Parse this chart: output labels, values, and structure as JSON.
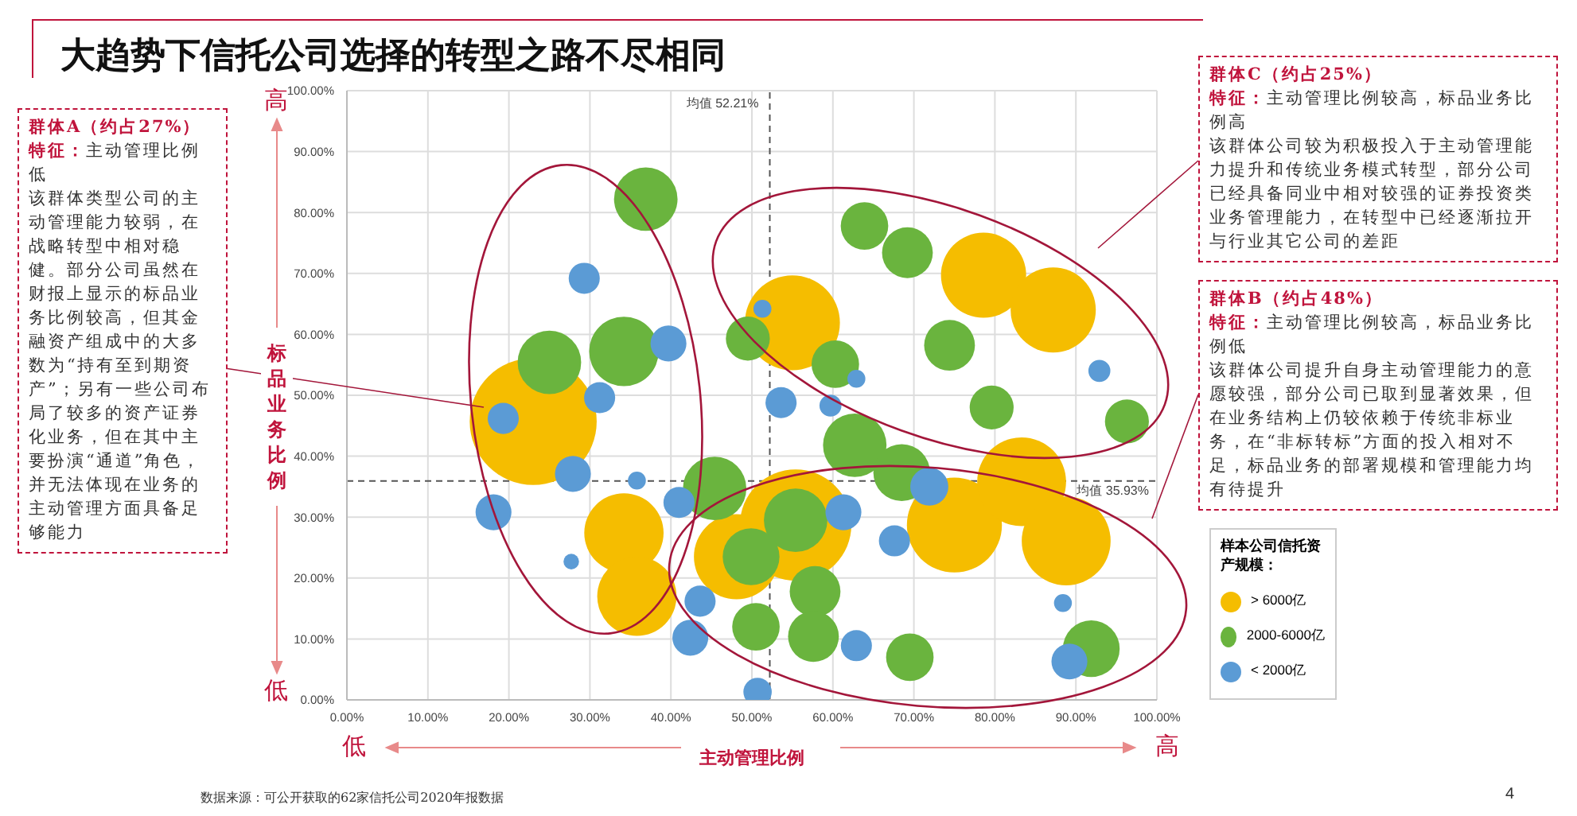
{
  "chart_data": {
    "type": "bubble",
    "title": "大趋势下信托公司选择的转型之路不尽相同",
    "xlabel": "主动管理比例",
    "ylabel": "标品业务比例",
    "legend_title": "样本公司信托资产规模：",
    "xlim": [
      0,
      100
    ],
    "ylim": [
      0,
      100
    ],
    "xticks": [
      {
        "value": 0,
        "label": "0.00%"
      },
      {
        "value": 10,
        "label": "10.00%"
      },
      {
        "value": 20,
        "label": "20.00%"
      },
      {
        "value": 30,
        "label": "30.00%"
      },
      {
        "value": 40,
        "label": "40.00%"
      },
      {
        "value": 50,
        "label": "50.00%"
      },
      {
        "value": 60,
        "label": "60.00%"
      },
      {
        "value": 70,
        "label": "70.00%"
      },
      {
        "value": 80,
        "label": "80.00%"
      },
      {
        "value": 90,
        "label": "90.00%"
      },
      {
        "value": 100,
        "label": "100.00%"
      }
    ],
    "yticks": [
      {
        "value": 0,
        "label": "0.00%"
      },
      {
        "value": 10,
        "label": "10.00%"
      },
      {
        "value": 20,
        "label": "20.00%"
      },
      {
        "value": 30,
        "label": "30.00%"
      },
      {
        "value": 40,
        "label": "40.00%"
      },
      {
        "value": 50,
        "label": "50.00%"
      },
      {
        "value": 60,
        "label": "60.00%"
      },
      {
        "value": 70,
        "label": "70.00%"
      },
      {
        "value": 80,
        "label": "80.00%"
      },
      {
        "value": 90,
        "label": "90.00%"
      },
      {
        "value": 100,
        "label": "100.00%"
      }
    ],
    "grid": true,
    "legend": "right",
    "ref_lines": [
      {
        "axis": "x",
        "value": 52.21,
        "label": "均值 52.21%",
        "color": "#555555",
        "line_style": "dashed"
      },
      {
        "axis": "y",
        "value": 35.93,
        "label": "均值 35.93%",
        "color": "#555555",
        "line_style": "dashed"
      }
    ],
    "series": [
      {
        "name": "> 6000亿",
        "color": "#f5bd00",
        "x": [
          23,
          34.2,
          35.8,
          55,
          78.6,
          87.2,
          55.4,
          48.1,
          75,
          83.3,
          88.8
        ],
        "values": [
          45.7,
          27.4,
          17,
          61.9,
          69.7,
          64,
          28.7,
          23.5,
          28.7,
          35.8,
          26.1
        ],
        "sizes": [
          1,
          0.39,
          0.39,
          0.56,
          0.45,
          0.45,
          0.77,
          0.45,
          0.56,
          0.49,
          0.49
        ]
      },
      {
        "name": "2000-6000亿",
        "color": "#6ab43e",
        "x": [
          36.9,
          25,
          34.2,
          63.9,
          69.2,
          74.4,
          49.5,
          60.3,
          79.6,
          96.3,
          62.7,
          68.5,
          45.4,
          55.4,
          49.9,
          57.8,
          57.6,
          50.5,
          69.5,
          91.9
        ],
        "values": [
          82.2,
          55.4,
          57.2,
          77.8,
          73.4,
          58.2,
          59.3,
          55.1,
          48,
          45.7,
          41.8,
          37.3,
          34.7,
          29.5,
          23.5,
          17.8,
          10.4,
          12,
          7,
          8.4
        ],
        "sizes": [
          0.25,
          0.25,
          0.3,
          0.14,
          0.16,
          0.16,
          0.12,
          0.14,
          0.12,
          0.12,
          0.25,
          0.2,
          0.25,
          0.25,
          0.2,
          0.16,
          0.16,
          0.14,
          0.14,
          0.2
        ]
      },
      {
        "name": "< 2000亿",
        "color": "#5b9bd5",
        "x": [
          29.3,
          39.7,
          19.3,
          31.2,
          27.9,
          35.8,
          18.1,
          27.7,
          41,
          43.6,
          42.4,
          50.7,
          53.6,
          51.3,
          62.9,
          61.3,
          67.6,
          71.9,
          62.9,
          88.4,
          89.2,
          92.9,
          59.7
        ],
        "values": [
          69.2,
          58.5,
          46.2,
          49.6,
          37.1,
          36,
          30.8,
          22.7,
          32.4,
          16.2,
          10.2,
          1.3,
          48.8,
          64.2,
          52.7,
          30.8,
          26.1,
          35,
          8.9,
          15.9,
          6.3,
          54,
          48.3
        ],
        "sizes": [
          0.06,
          0.08,
          0.06,
          0.06,
          0.08,
          0.02,
          0.08,
          0.015,
          0.06,
          0.06,
          0.08,
          0.05,
          0.06,
          0.02,
          0.02,
          0.08,
          0.06,
          0.09,
          0.06,
          0.02,
          0.08,
          0.03,
          0.03
        ]
      }
    ],
    "annotations": [
      "群体A（约占27%）",
      "特征：主动管理比例低",
      "该群体类型公司的主动管理能力较弱，在战略转型中相对稳健。部分公司虽然在财报上显示的标品业务比例较高，但其金融资产组成中的大多数为“持有至到期资产”；另有一些公司布局了较多的资产证券化业务，但在其中主要扮演“通道”角色，并无法体现在业务的主动管理方面具备足够能力",
      "群体C（约占25%）",
      "特征：主动管理比例较高，标品业务比例高",
      "该群体公司较为积极投入于主动管理能力提升和传统业务模式转型，部分公司已经具备同业中相对较强的证券投资类业务管理能力，在转型中已经逐渐拉开与行业其它公司的差距",
      "群体B（约占48%）",
      "特征：主动管理比例较高，标品业务比例低",
      "该群体公司提升自身主动管理能力的意愿较强，部分公司已取到显著效果，但在业务结构上仍较依赖于传统非标业务，在“非标转标”方面的投入相对不足，标品业务的部署规模和管理能力均有待提升",
      "高",
      "低",
      "低",
      "高",
      "数据来源：可公开获取的62家信托公司2020年报数据",
      "4"
    ]
  }
}
